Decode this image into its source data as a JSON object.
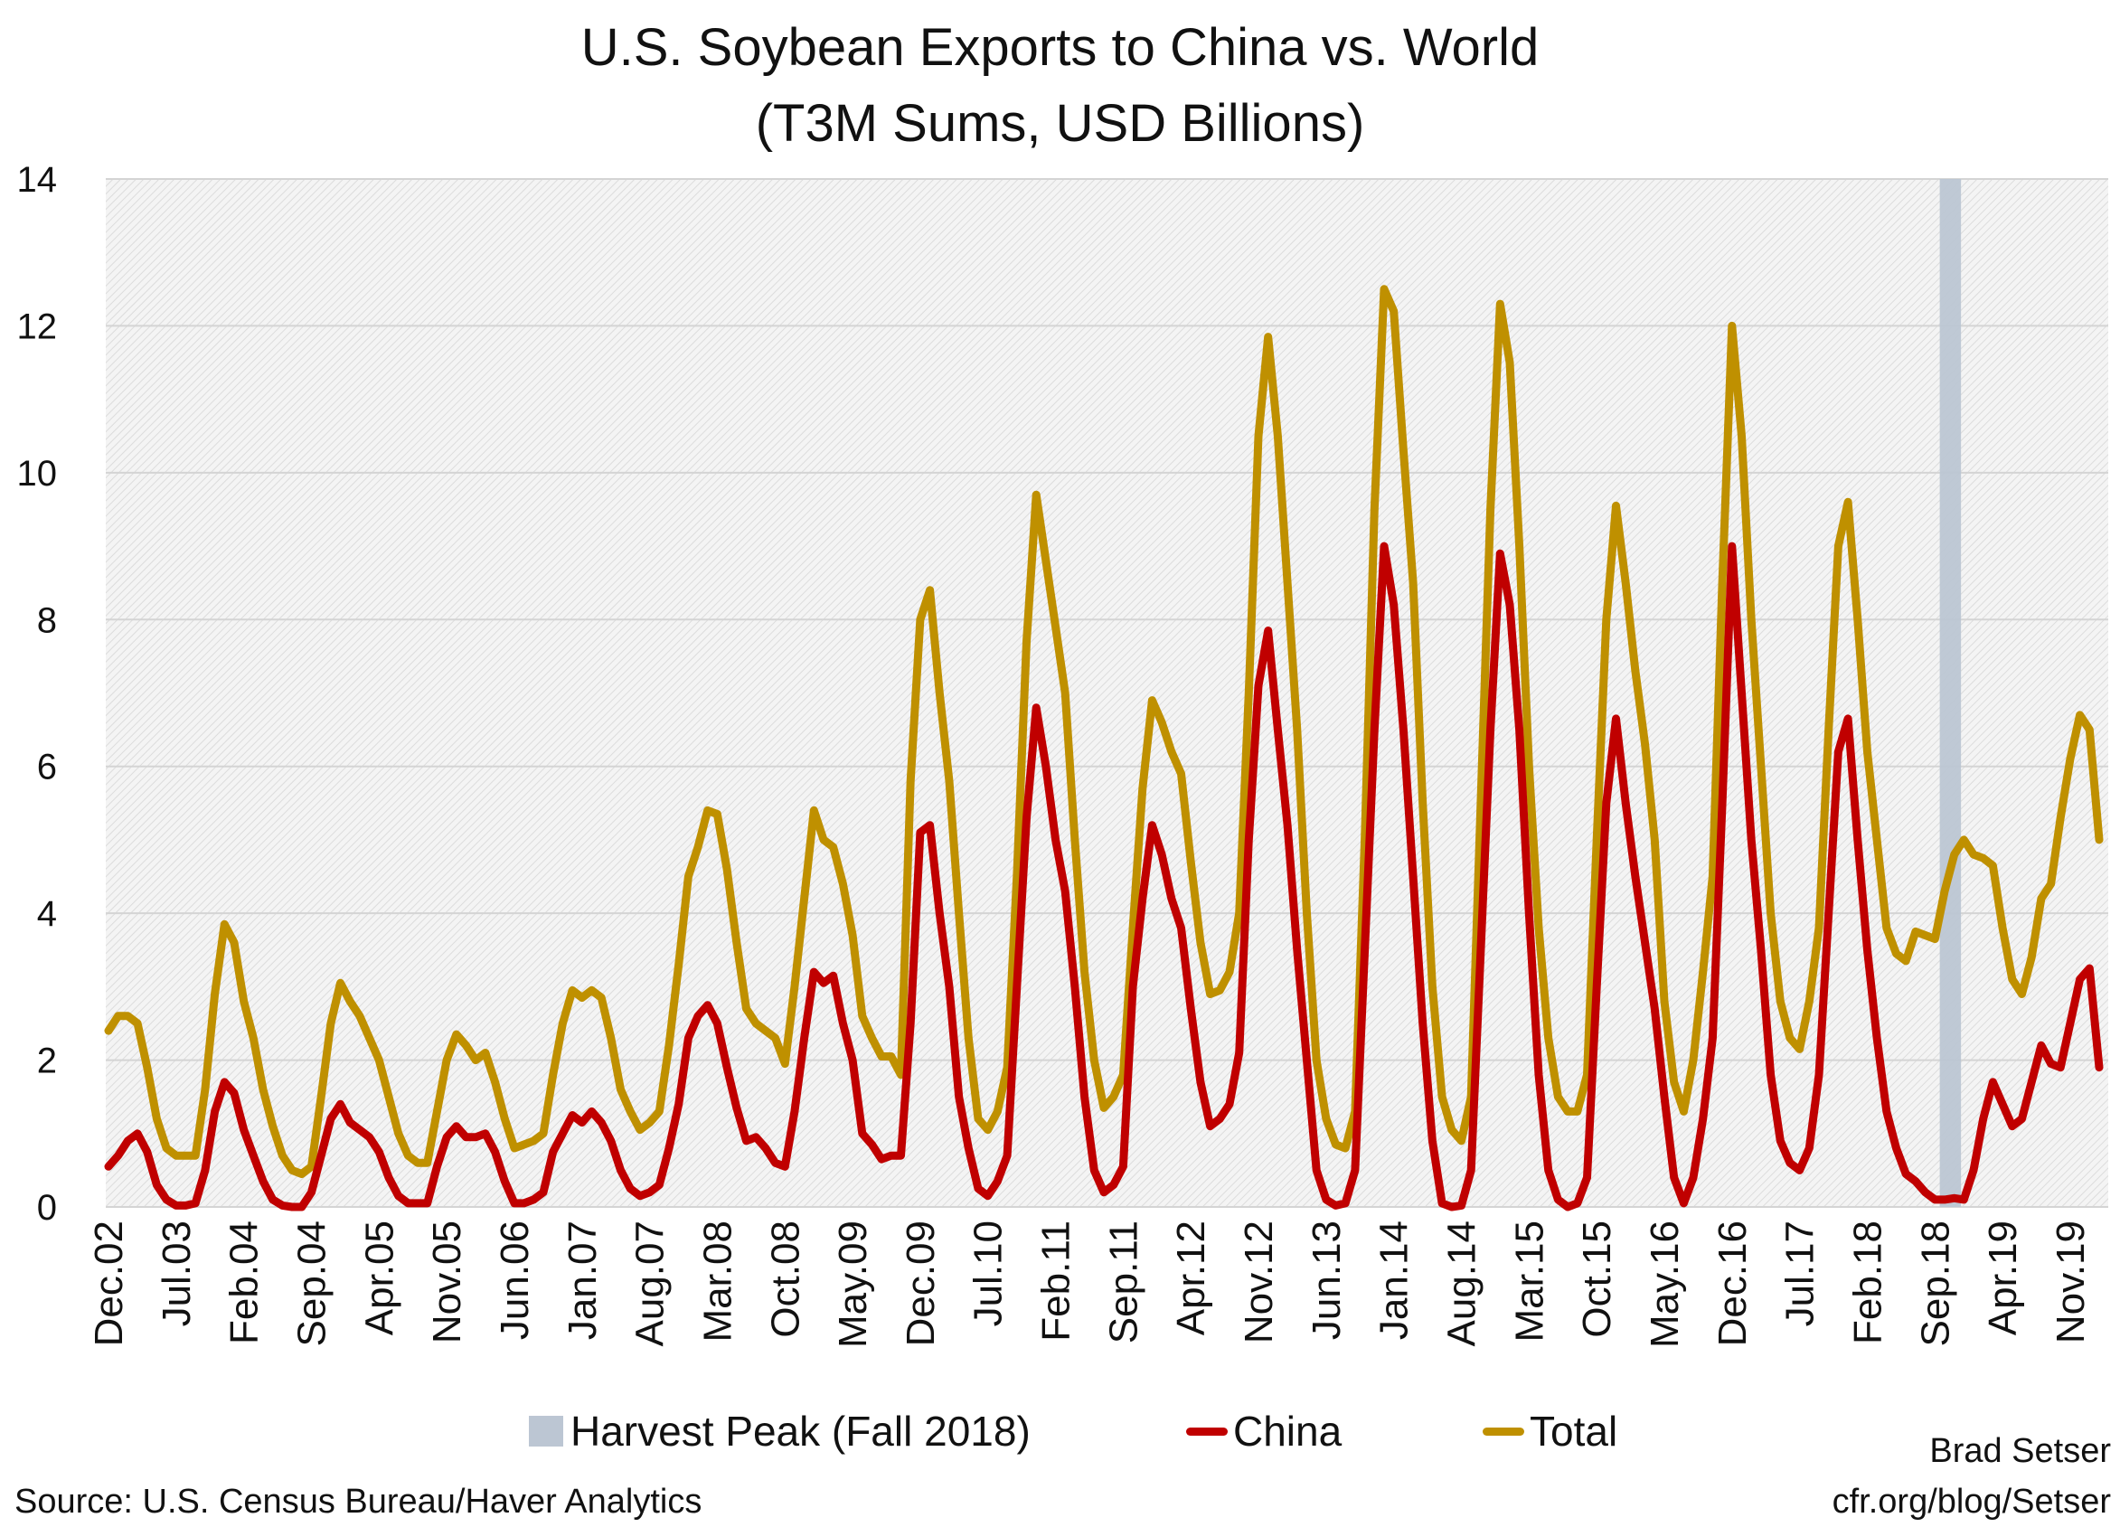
{
  "chart_data": {
    "type": "line",
    "title": "U.S. Soybean Exports to China vs. World",
    "subtitle": "(T3M Sums, USD Billions)",
    "x_start": "Dec.02",
    "x_end": "Feb.20",
    "x_frequency": "monthly",
    "x_tick_labels": [
      "Dec.02",
      "Jul.03",
      "Feb.04",
      "Sep.04",
      "Apr.05",
      "Nov.05",
      "Jun.06",
      "Jan.07",
      "Aug.07",
      "Mar.08",
      "Oct.08",
      "May.09",
      "Dec.09",
      "Jul.10",
      "Feb.11",
      "Sep.11",
      "Apr.12",
      "Nov.12",
      "Jun.13",
      "Jan.14",
      "Aug.14",
      "Mar.15",
      "Oct.15",
      "May.16",
      "Dec.16",
      "Jul.17",
      "Feb.18",
      "Sep.18",
      "Apr.19",
      "Nov.19"
    ],
    "ylim": [
      0,
      14
    ],
    "y_ticks": [
      0,
      2,
      4,
      6,
      8,
      10,
      12,
      14
    ],
    "grid": true,
    "legend_placement": "bottom",
    "highlight": {
      "label": "Harvest Peak (Fall 2018)",
      "start": "Sep.18",
      "end": "Nov.18",
      "color": "#bcc6d3"
    },
    "series": [
      {
        "name": "China",
        "color": "#c00000",
        "values": [
          0.55,
          0.7,
          0.9,
          1.0,
          0.75,
          0.3,
          0.1,
          0.02,
          0.02,
          0.05,
          0.5,
          1.3,
          1.7,
          1.55,
          1.05,
          0.7,
          0.35,
          0.1,
          0.02,
          0.0,
          0.0,
          0.2,
          0.7,
          1.2,
          1.4,
          1.15,
          1.05,
          0.95,
          0.75,
          0.4,
          0.15,
          0.05,
          0.05,
          0.05,
          0.55,
          0.95,
          1.1,
          0.95,
          0.95,
          1.0,
          0.75,
          0.35,
          0.05,
          0.05,
          0.1,
          0.2,
          0.75,
          1.0,
          1.25,
          1.15,
          1.3,
          1.15,
          0.9,
          0.5,
          0.25,
          0.15,
          0.2,
          0.3,
          0.8,
          1.4,
          2.3,
          2.6,
          2.75,
          2.5,
          1.9,
          1.35,
          0.9,
          0.95,
          0.8,
          0.6,
          0.55,
          1.3,
          2.3,
          3.2,
          3.05,
          3.15,
          2.5,
          2.0,
          1.0,
          0.85,
          0.65,
          0.7,
          0.7,
          2.5,
          5.1,
          5.2,
          4.0,
          3.0,
          1.5,
          0.8,
          0.25,
          0.15,
          0.35,
          0.7,
          3.0,
          5.3,
          6.8,
          6.0,
          5.0,
          4.3,
          3.0,
          1.5,
          0.5,
          0.2,
          0.3,
          0.55,
          3.0,
          4.2,
          5.2,
          4.8,
          4.2,
          3.8,
          2.7,
          1.7,
          1.1,
          1.2,
          1.4,
          2.1,
          5.0,
          7.1,
          7.85,
          6.5,
          5.2,
          3.5,
          2.0,
          0.5,
          0.1,
          0.02,
          0.05,
          0.5,
          3.5,
          6.5,
          9.0,
          8.2,
          6.5,
          4.5,
          2.5,
          0.9,
          0.05,
          0.0,
          0.02,
          0.5,
          3.5,
          6.5,
          8.9,
          8.2,
          6.5,
          4.0,
          1.8,
          0.5,
          0.1,
          0.0,
          0.05,
          0.4,
          3.0,
          5.5,
          6.65,
          5.5,
          4.5,
          3.6,
          2.7,
          1.5,
          0.4,
          0.05,
          0.4,
          1.2,
          2.3,
          5.5,
          9.0,
          7.0,
          5.0,
          3.5,
          1.8,
          0.9,
          0.6,
          0.5,
          0.8,
          1.8,
          4.0,
          6.2,
          6.65,
          5.0,
          3.5,
          2.3,
          1.3,
          0.8,
          0.45,
          0.35,
          0.2,
          0.1,
          0.1,
          0.12,
          0.1,
          0.5,
          1.2,
          1.7,
          1.4,
          1.1,
          1.2,
          1.7,
          2.2,
          1.95,
          1.9,
          2.5,
          3.1,
          3.25,
          1.9
        ]
      },
      {
        "name": "Total",
        "color": "#bf9000",
        "values": [
          2.4,
          2.6,
          2.6,
          2.5,
          1.9,
          1.2,
          0.8,
          0.7,
          0.7,
          0.7,
          1.6,
          2.9,
          3.85,
          3.6,
          2.8,
          2.3,
          1.6,
          1.1,
          0.7,
          0.5,
          0.45,
          0.55,
          1.5,
          2.5,
          3.05,
          2.8,
          2.6,
          2.3,
          2.0,
          1.5,
          1.0,
          0.7,
          0.6,
          0.6,
          1.3,
          2.0,
          2.35,
          2.2,
          2.0,
          2.1,
          1.7,
          1.2,
          0.8,
          0.85,
          0.9,
          1.0,
          1.8,
          2.5,
          2.95,
          2.85,
          2.95,
          2.85,
          2.3,
          1.6,
          1.3,
          1.05,
          1.15,
          1.3,
          2.2,
          3.3,
          4.5,
          4.9,
          5.4,
          5.35,
          4.6,
          3.6,
          2.7,
          2.5,
          2.4,
          2.3,
          1.95,
          3.0,
          4.2,
          5.4,
          5.0,
          4.9,
          4.4,
          3.7,
          2.6,
          2.3,
          2.05,
          2.05,
          1.8,
          5.8,
          8.0,
          8.4,
          7.0,
          5.8,
          4.0,
          2.3,
          1.2,
          1.05,
          1.3,
          1.9,
          4.5,
          7.7,
          9.7,
          8.8,
          7.9,
          7.0,
          5.0,
          3.2,
          2.0,
          1.35,
          1.5,
          1.8,
          3.8,
          5.7,
          6.9,
          6.6,
          6.2,
          5.9,
          4.7,
          3.6,
          2.9,
          2.95,
          3.2,
          4.0,
          7.0,
          10.5,
          11.85,
          10.5,
          8.5,
          6.5,
          4.0,
          2.0,
          1.2,
          0.85,
          0.8,
          1.3,
          5.0,
          9.5,
          12.5,
          12.2,
          10.3,
          8.5,
          5.5,
          3.0,
          1.5,
          1.05,
          0.9,
          1.5,
          5.5,
          9.5,
          12.3,
          11.5,
          9.0,
          6.0,
          3.8,
          2.3,
          1.5,
          1.3,
          1.3,
          1.8,
          5.0,
          8.0,
          9.55,
          8.5,
          7.3,
          6.3,
          5.0,
          2.8,
          1.7,
          1.3,
          2.0,
          3.2,
          4.5,
          8.5,
          12.0,
          10.5,
          8.0,
          6.0,
          4.0,
          2.8,
          2.3,
          2.15,
          2.8,
          3.8,
          6.5,
          9.0,
          9.6,
          8.0,
          6.2,
          5.0,
          3.8,
          3.45,
          3.35,
          3.75,
          3.7,
          3.65,
          4.3,
          4.8,
          5.0,
          4.8,
          4.75,
          4.65,
          3.8,
          3.1,
          2.9,
          3.4,
          4.2,
          4.4,
          5.3,
          6.1,
          6.7,
          6.5,
          5.0
        ]
      }
    ]
  },
  "footer": {
    "source": "Source: U.S. Census Bureau/Haver Analytics",
    "author": "Brad Setser",
    "url": "cfr.org/blog/Setser"
  }
}
